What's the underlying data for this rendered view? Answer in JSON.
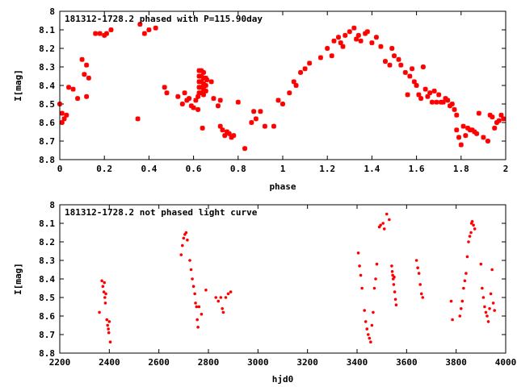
{
  "chart_data": [
    {
      "type": "scatter",
      "title": "181312-1728.2  phased with P=115.90day",
      "xlabel": "phase",
      "ylabel": "I[mag]",
      "xlim": [
        0,
        2
      ],
      "ylim": [
        8.8,
        8.0
      ],
      "y_inverted": true,
      "xticks": [
        "0",
        "0.2",
        "0.4",
        "0.6",
        "0.8",
        "1",
        "1.2",
        "1.4",
        "1.6",
        "1.8",
        "2"
      ],
      "yticks": [
        "8",
        "8.1",
        "8.2",
        "8.3",
        "8.4",
        "8.5",
        "8.6",
        "8.7",
        "8.8"
      ],
      "marker_color": "#ff0000",
      "marker": "star",
      "points": [
        [
          0.0,
          8.5
        ],
        [
          0.01,
          8.55
        ],
        [
          0.02,
          8.58
        ],
        [
          0.01,
          8.6
        ],
        [
          0.03,
          8.56
        ],
        [
          0.04,
          8.41
        ],
        [
          0.06,
          8.42
        ],
        [
          0.08,
          8.47
        ],
        [
          0.1,
          8.26
        ],
        [
          0.11,
          8.34
        ],
        [
          0.12,
          8.29
        ],
        [
          0.12,
          8.46
        ],
        [
          0.13,
          8.36
        ],
        [
          0.16,
          8.12
        ],
        [
          0.18,
          8.12
        ],
        [
          0.2,
          8.13
        ],
        [
          0.21,
          8.12
        ],
        [
          0.23,
          8.1
        ],
        [
          0.35,
          8.58
        ],
        [
          0.36,
          8.07
        ],
        [
          0.38,
          8.12
        ],
        [
          0.4,
          8.1
        ],
        [
          0.43,
          8.09
        ],
        [
          0.47,
          8.41
        ],
        [
          0.48,
          8.44
        ],
        [
          0.53,
          8.46
        ],
        [
          0.55,
          8.5
        ],
        [
          0.56,
          8.44
        ],
        [
          0.57,
          8.48
        ],
        [
          0.58,
          8.47
        ],
        [
          0.59,
          8.51
        ],
        [
          0.6,
          8.52
        ],
        [
          0.61,
          8.48
        ],
        [
          0.62,
          8.53
        ],
        [
          0.62,
          8.46
        ],
        [
          0.625,
          8.32
        ],
        [
          0.625,
          8.35
        ],
        [
          0.625,
          8.38
        ],
        [
          0.625,
          8.41
        ],
        [
          0.625,
          8.44
        ],
        [
          0.635,
          8.32
        ],
        [
          0.635,
          8.35
        ],
        [
          0.635,
          8.38
        ],
        [
          0.635,
          8.41
        ],
        [
          0.635,
          8.44
        ],
        [
          0.645,
          8.33
        ],
        [
          0.645,
          8.36
        ],
        [
          0.645,
          8.39
        ],
        [
          0.645,
          8.42
        ],
        [
          0.645,
          8.45
        ],
        [
          0.655,
          8.36
        ],
        [
          0.655,
          8.4
        ],
        [
          0.655,
          8.43
        ],
        [
          0.64,
          8.63
        ],
        [
          0.66,
          8.37
        ],
        [
          0.68,
          8.38
        ],
        [
          0.69,
          8.47
        ],
        [
          0.71,
          8.51
        ],
        [
          0.72,
          8.48
        ],
        [
          0.72,
          8.62
        ],
        [
          0.73,
          8.64
        ],
        [
          0.74,
          8.67
        ],
        [
          0.75,
          8.65
        ],
        [
          0.76,
          8.66
        ],
        [
          0.77,
          8.68
        ],
        [
          0.78,
          8.67
        ],
        [
          0.8,
          8.49
        ],
        [
          0.83,
          8.74
        ],
        [
          0.86,
          8.6
        ],
        [
          0.87,
          8.54
        ],
        [
          0.88,
          8.58
        ],
        [
          0.9,
          8.54
        ],
        [
          0.92,
          8.62
        ],
        [
          0.96,
          8.62
        ],
        [
          0.98,
          8.48
        ],
        [
          1.0,
          8.5
        ],
        [
          1.03,
          8.44
        ],
        [
          1.05,
          8.38
        ],
        [
          1.06,
          8.4
        ],
        [
          1.08,
          8.33
        ],
        [
          1.1,
          8.31
        ],
        [
          1.12,
          8.28
        ],
        [
          1.17,
          8.25
        ],
        [
          1.2,
          8.2
        ],
        [
          1.22,
          8.24
        ],
        [
          1.23,
          8.16
        ],
        [
          1.25,
          8.14
        ],
        [
          1.26,
          8.17
        ],
        [
          1.27,
          8.19
        ],
        [
          1.28,
          8.13
        ],
        [
          1.3,
          8.11
        ],
        [
          1.32,
          8.09
        ],
        [
          1.33,
          8.15
        ],
        [
          1.34,
          8.13
        ],
        [
          1.35,
          8.16
        ],
        [
          1.37,
          8.12
        ],
        [
          1.38,
          8.11
        ],
        [
          1.4,
          8.17
        ],
        [
          1.42,
          8.14
        ],
        [
          1.44,
          8.19
        ],
        [
          1.46,
          8.27
        ],
        [
          1.48,
          8.29
        ],
        [
          1.49,
          8.2
        ],
        [
          1.5,
          8.24
        ],
        [
          1.52,
          8.26
        ],
        [
          1.53,
          8.29
        ],
        [
          1.55,
          8.33
        ],
        [
          1.57,
          8.35
        ],
        [
          1.56,
          8.45
        ],
        [
          1.58,
          8.31
        ],
        [
          1.59,
          8.38
        ],
        [
          1.6,
          8.4
        ],
        [
          1.61,
          8.45
        ],
        [
          1.62,
          8.47
        ],
        [
          1.63,
          8.3
        ],
        [
          1.64,
          8.42
        ],
        [
          1.65,
          8.46
        ],
        [
          1.66,
          8.44
        ],
        [
          1.67,
          8.49
        ],
        [
          1.68,
          8.43
        ],
        [
          1.69,
          8.49
        ],
        [
          1.7,
          8.45
        ],
        [
          1.71,
          8.49
        ],
        [
          1.72,
          8.49
        ],
        [
          1.73,
          8.47
        ],
        [
          1.74,
          8.48
        ],
        [
          1.75,
          8.51
        ],
        [
          1.76,
          8.5
        ],
        [
          1.77,
          8.53
        ],
        [
          1.78,
          8.56
        ],
        [
          1.78,
          8.64
        ],
        [
          1.79,
          8.68
        ],
        [
          1.8,
          8.72
        ],
        [
          1.81,
          8.62
        ],
        [
          1.82,
          8.67
        ],
        [
          1.83,
          8.63
        ],
        [
          1.84,
          8.64
        ],
        [
          1.85,
          8.64
        ],
        [
          1.86,
          8.65
        ],
        [
          1.87,
          8.66
        ],
        [
          1.88,
          8.55
        ],
        [
          1.9,
          8.68
        ],
        [
          1.92,
          8.7
        ],
        [
          1.93,
          8.56
        ],
        [
          1.94,
          8.57
        ],
        [
          1.95,
          8.63
        ],
        [
          1.96,
          8.6
        ],
        [
          1.97,
          8.59
        ],
        [
          1.98,
          8.56
        ],
        [
          1.99,
          8.58
        ]
      ]
    },
    {
      "type": "scatter",
      "title": "181312-1728.2  not phased light curve",
      "xlabel": "hjd0",
      "ylabel": "I[mag]",
      "xlim": [
        2200,
        4000
      ],
      "ylim": [
        8.8,
        8.0
      ],
      "y_inverted": true,
      "xticks": [
        "2200",
        "2400",
        "2600",
        "2800",
        "3000",
        "3200",
        "3400",
        "3600",
        "3800",
        "4000"
      ],
      "yticks": [
        "8",
        "8.1",
        "8.2",
        "8.3",
        "8.4",
        "8.5",
        "8.6",
        "8.7",
        "8.8"
      ],
      "marker_color": "#ff0000",
      "marker": "dot",
      "points": [
        [
          2360,
          8.58
        ],
        [
          2370,
          8.41
        ],
        [
          2374,
          8.44
        ],
        [
          2378,
          8.47
        ],
        [
          2380,
          8.42
        ],
        [
          2382,
          8.5
        ],
        [
          2384,
          8.53
        ],
        [
          2386,
          8.48
        ],
        [
          2390,
          8.62
        ],
        [
          2393,
          8.65
        ],
        [
          2396,
          8.67
        ],
        [
          2398,
          8.69
        ],
        [
          2400,
          8.63
        ],
        [
          2404,
          8.74
        ],
        [
          2690,
          8.27
        ],
        [
          2695,
          8.22
        ],
        [
          2700,
          8.18
        ],
        [
          2705,
          8.16
        ],
        [
          2710,
          8.15
        ],
        [
          2715,
          8.19
        ],
        [
          2725,
          8.3
        ],
        [
          2730,
          8.35
        ],
        [
          2735,
          8.4
        ],
        [
          2740,
          8.44
        ],
        [
          2745,
          8.48
        ],
        [
          2748,
          8.53
        ],
        [
          2752,
          8.55
        ],
        [
          2755,
          8.62
        ],
        [
          2758,
          8.66
        ],
        [
          2762,
          8.55
        ],
        [
          2772,
          8.59
        ],
        [
          2790,
          8.46
        ],
        [
          2830,
          8.5
        ],
        [
          2840,
          8.52
        ],
        [
          2850,
          8.5
        ],
        [
          2856,
          8.56
        ],
        [
          2860,
          8.58
        ],
        [
          2870,
          8.5
        ],
        [
          2880,
          8.48
        ],
        [
          2890,
          8.47
        ],
        [
          3405,
          8.26
        ],
        [
          3410,
          8.33
        ],
        [
          3415,
          8.38
        ],
        [
          3420,
          8.45
        ],
        [
          3430,
          8.57
        ],
        [
          3435,
          8.63
        ],
        [
          3440,
          8.67
        ],
        [
          3445,
          8.7
        ],
        [
          3450,
          8.72
        ],
        [
          3455,
          8.74
        ],
        [
          3460,
          8.65
        ],
        [
          3465,
          8.58
        ],
        [
          3470,
          8.45
        ],
        [
          3475,
          8.4
        ],
        [
          3480,
          8.32
        ],
        [
          3490,
          8.12
        ],
        [
          3495,
          8.11
        ],
        [
          3505,
          8.1
        ],
        [
          3510,
          8.13
        ],
        [
          3520,
          8.05
        ],
        [
          3530,
          8.08
        ],
        [
          3540,
          8.33
        ],
        [
          3542,
          8.36
        ],
        [
          3544,
          8.38
        ],
        [
          3546,
          8.4
        ],
        [
          3548,
          8.43
        ],
        [
          3550,
          8.39
        ],
        [
          3552,
          8.47
        ],
        [
          3555,
          8.51
        ],
        [
          3558,
          8.54
        ],
        [
          3640,
          8.3
        ],
        [
          3645,
          8.34
        ],
        [
          3650,
          8.37
        ],
        [
          3655,
          8.43
        ],
        [
          3660,
          8.48
        ],
        [
          3665,
          8.5
        ],
        [
          3780,
          8.52
        ],
        [
          3785,
          8.62
        ],
        [
          3815,
          8.6
        ],
        [
          3820,
          8.56
        ],
        [
          3825,
          8.52
        ],
        [
          3830,
          8.45
        ],
        [
          3835,
          8.41
        ],
        [
          3840,
          8.37
        ],
        [
          3845,
          8.28
        ],
        [
          3850,
          8.2
        ],
        [
          3855,
          8.17
        ],
        [
          3860,
          8.15
        ],
        [
          3862,
          8.1
        ],
        [
          3865,
          8.09
        ],
        [
          3870,
          8.11
        ],
        [
          3875,
          8.13
        ],
        [
          3900,
          8.32
        ],
        [
          3905,
          8.45
        ],
        [
          3910,
          8.5
        ],
        [
          3915,
          8.55
        ],
        [
          3920,
          8.58
        ],
        [
          3925,
          8.6
        ],
        [
          3930,
          8.63
        ],
        [
          3935,
          8.56
        ],
        [
          3940,
          8.48
        ],
        [
          3945,
          8.35
        ],
        [
          3950,
          8.53
        ],
        [
          3955,
          8.57
        ]
      ]
    }
  ]
}
